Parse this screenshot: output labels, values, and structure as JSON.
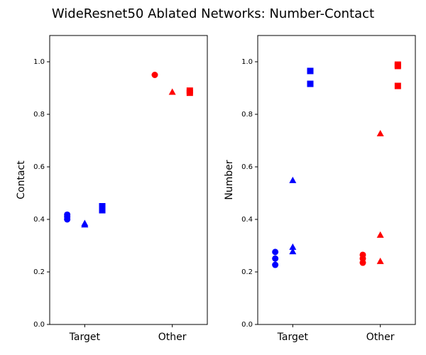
{
  "title": "WideResnet50 Ablated Networks: Number-Contact",
  "chart_data": [
    {
      "type": "scatter",
      "ylabel": "Contact",
      "xlim": [
        -0.4,
        1.4
      ],
      "xticks": [
        {
          "value": 0,
          "label": "Target"
        },
        {
          "value": 1,
          "label": "Other"
        }
      ],
      "ylim": [
        0,
        1.1
      ],
      "yticks": [
        {
          "value": 0,
          "label": "0.0"
        },
        0.2,
        0.4,
        0.6,
        0.8,
        {
          "value": 1,
          "label": "1.0"
        }
      ],
      "series": [
        {
          "color": "#0000ff",
          "marker": "circle",
          "x": [
            -0.2,
            -0.2,
            -0.2
          ],
          "values": [
            0.418,
            0.41,
            0.4
          ]
        },
        {
          "color": "#0000ff",
          "marker": "triangle",
          "x": [
            0,
            0
          ],
          "values": [
            0.385,
            0.38
          ]
        },
        {
          "color": "#0000ff",
          "marker": "square",
          "x": [
            0.2,
            0.2,
            0.2
          ],
          "values": [
            0.45,
            0.44,
            0.435
          ]
        },
        {
          "color": "#ff0000",
          "marker": "circle",
          "x": [
            0.8
          ],
          "values": [
            0.95
          ]
        },
        {
          "color": "#ff0000",
          "marker": "triangle",
          "x": [
            1
          ],
          "values": [
            0.885
          ]
        },
        {
          "color": "#ff0000",
          "marker": "square",
          "x": [
            1.2,
            1.2
          ],
          "values": [
            0.89,
            0.882
          ]
        }
      ]
    },
    {
      "type": "scatter",
      "ylabel": "Number",
      "xlim": [
        -0.4,
        1.4
      ],
      "xticks": [
        {
          "value": 0,
          "label": "Target"
        },
        {
          "value": 1,
          "label": "Other"
        }
      ],
      "ylim": [
        0,
        1.1
      ],
      "yticks": [
        {
          "value": 0,
          "label": "0.0"
        },
        0.2,
        0.4,
        0.6,
        0.8,
        {
          "value": 1,
          "label": "1.0"
        }
      ],
      "series": [
        {
          "color": "#0000ff",
          "marker": "circle",
          "x": [
            -0.2,
            -0.2,
            -0.2
          ],
          "values": [
            0.276,
            0.251,
            0.227
          ]
        },
        {
          "color": "#0000ff",
          "marker": "triangle",
          "x": [
            0,
            0,
            0
          ],
          "values": [
            0.549,
            0.295,
            0.278
          ]
        },
        {
          "color": "#0000ff",
          "marker": "square",
          "x": [
            0.2,
            0.2
          ],
          "values": [
            0.965,
            0.916
          ]
        },
        {
          "color": "#ff0000",
          "marker": "circle",
          "x": [
            0.8,
            0.8,
            0.8
          ],
          "values": [
            0.265,
            0.251,
            0.235
          ]
        },
        {
          "color": "#ff0000",
          "marker": "triangle",
          "x": [
            1,
            1,
            1
          ],
          "values": [
            0.727,
            0.341,
            0.241
          ]
        },
        {
          "color": "#ff0000",
          "marker": "square",
          "x": [
            1.2,
            1.2,
            1.2
          ],
          "values": [
            0.989,
            0.984,
            0.908
          ]
        }
      ]
    }
  ]
}
